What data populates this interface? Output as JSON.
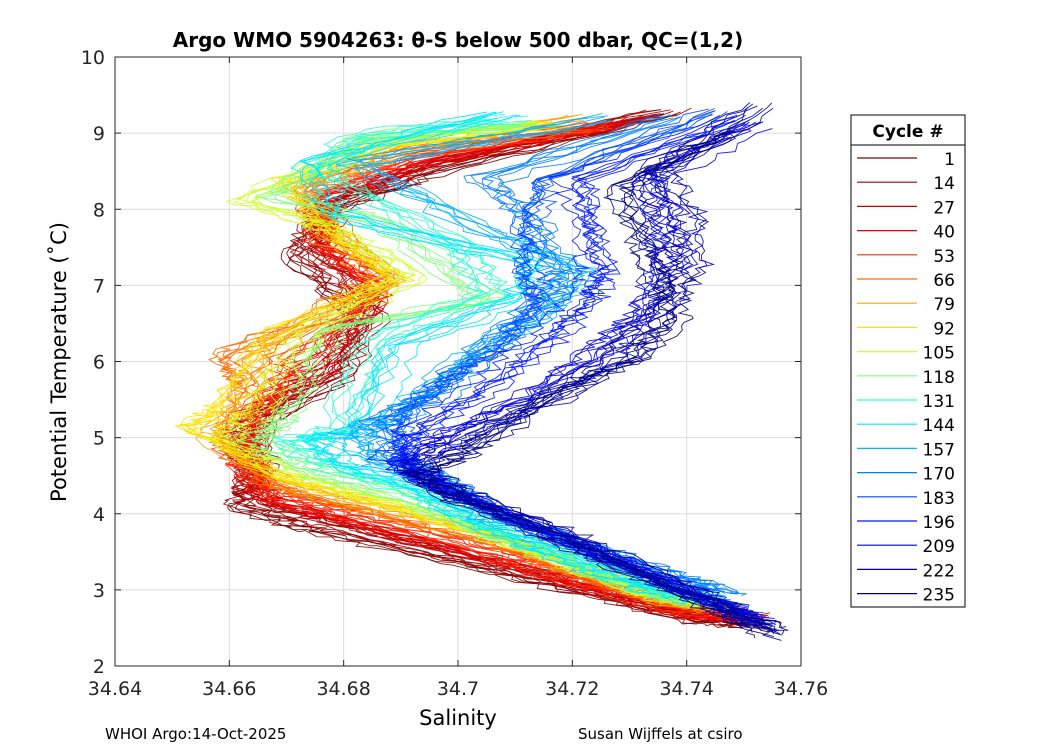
{
  "chart_data": {
    "type": "line",
    "title": "Argo WMO 5904263: θ-S below 500 dbar,  QC=(1,2)",
    "xlabel": "Salinity",
    "ylabel": "Potential Temperature (˚C)",
    "xlim": [
      34.64,
      34.76
    ],
    "ylim": [
      2,
      10
    ],
    "xticks": [
      34.64,
      34.66,
      34.68,
      34.7,
      34.72,
      34.74,
      34.76
    ],
    "xtick_labels": [
      "34.64",
      "34.66",
      "34.68",
      "34.7",
      "34.72",
      "34.74",
      "34.76"
    ],
    "yticks": [
      2,
      3,
      4,
      5,
      6,
      7,
      8,
      9,
      10
    ],
    "ytick_labels": [
      "2",
      "3",
      "4",
      "5",
      "6",
      "7",
      "8",
      "9",
      "10"
    ],
    "grid": true,
    "legend": {
      "title": "Cycle #",
      "location": "outside-right",
      "entries": [
        {
          "label": "1",
          "color": "#800000"
        },
        {
          "label": "14",
          "color": "#a50000"
        },
        {
          "label": "27",
          "color": "#c80000"
        },
        {
          "label": "40",
          "color": "#ed0000"
        },
        {
          "label": "53",
          "color": "#ff2e00"
        },
        {
          "label": "66",
          "color": "#ff6a00"
        },
        {
          "label": "79",
          "color": "#ffa400"
        },
        {
          "label": "92",
          "color": "#ffe000"
        },
        {
          "label": "105",
          "color": "#d0ff2e"
        },
        {
          "label": "118",
          "color": "#7eff80"
        },
        {
          "label": "131",
          "color": "#2effd0"
        },
        {
          "label": "144",
          "color": "#00e6ff"
        },
        {
          "label": "157",
          "color": "#00b2ff"
        },
        {
          "label": "170",
          "color": "#007eff"
        },
        {
          "label": "183",
          "color": "#004aff"
        },
        {
          "label": "196",
          "color": "#0016ff"
        },
        {
          "label": "209",
          "color": "#0000e2"
        },
        {
          "label": "222",
          "color": "#0000b0"
        },
        {
          "label": "235",
          "color": "#000080"
        }
      ]
    },
    "series": [
      {
        "name": "1",
        "color": "#800000",
        "s": [
          34.753,
          34.742,
          34.725,
          34.7,
          34.676,
          34.663,
          34.665,
          34.663,
          34.68,
          34.684,
          34.672,
          34.678,
          34.696,
          34.738
        ],
        "t": [
          2.55,
          2.62,
          2.95,
          3.4,
          3.8,
          4.1,
          4.55,
          5.1,
          5.8,
          6.6,
          7.4,
          8.0,
          8.5,
          9.3
        ]
      },
      {
        "name": "14",
        "color": "#a50000",
        "s": [
          34.752,
          34.741,
          34.724,
          34.701,
          34.678,
          34.664,
          34.664,
          34.662,
          34.678,
          34.684,
          34.674,
          34.677,
          34.695,
          34.735
        ],
        "t": [
          2.6,
          2.65,
          3.0,
          3.42,
          3.85,
          4.15,
          4.6,
          5.2,
          5.85,
          6.7,
          7.45,
          8.05,
          8.55,
          9.25
        ]
      },
      {
        "name": "27",
        "color": "#c80000",
        "s": [
          34.751,
          34.74,
          34.722,
          34.702,
          34.679,
          34.665,
          34.663,
          34.664,
          34.676,
          34.685,
          34.675,
          34.676,
          34.694,
          34.732
        ],
        "t": [
          2.65,
          2.7,
          3.05,
          3.45,
          3.9,
          4.2,
          4.65,
          5.3,
          5.9,
          6.8,
          7.5,
          8.1,
          8.6,
          9.2
        ]
      },
      {
        "name": "40",
        "color": "#ed0000",
        "s": [
          34.749,
          34.739,
          34.721,
          34.703,
          34.68,
          34.666,
          34.662,
          34.665,
          34.673,
          34.686,
          34.676,
          34.675,
          34.693,
          34.728
        ],
        "t": [
          2.62,
          2.72,
          3.1,
          3.5,
          3.95,
          4.25,
          4.7,
          5.4,
          6.0,
          6.9,
          7.55,
          8.15,
          8.65,
          9.15
        ]
      },
      {
        "name": "53",
        "color": "#ff2e00",
        "s": [
          34.748,
          34.738,
          34.72,
          34.704,
          34.681,
          34.667,
          34.661,
          34.666,
          34.67,
          34.687,
          34.677,
          34.674,
          34.692,
          34.725
        ],
        "t": [
          2.7,
          2.75,
          3.15,
          3.55,
          4.0,
          4.3,
          4.8,
          5.5,
          6.1,
          7.0,
          7.6,
          8.2,
          8.7,
          9.1
        ]
      },
      {
        "name": "66",
        "color": "#ff6a00",
        "s": [
          34.747,
          34.737,
          34.721,
          34.706,
          34.683,
          34.668,
          34.66,
          34.664,
          34.66,
          34.674,
          34.688,
          34.673,
          34.691,
          34.722
        ],
        "t": [
          2.72,
          2.8,
          3.2,
          3.6,
          4.05,
          4.35,
          4.9,
          5.6,
          6.05,
          6.5,
          7.1,
          8.25,
          8.75,
          9.05
        ]
      },
      {
        "name": "79",
        "color": "#ffa400",
        "s": [
          34.746,
          34.736,
          34.722,
          34.708,
          34.684,
          34.669,
          34.656,
          34.663,
          34.665,
          34.688,
          34.677,
          34.672,
          34.69,
          34.72
        ],
        "t": [
          2.75,
          2.85,
          3.25,
          3.65,
          4.1,
          4.4,
          5.05,
          5.5,
          6.2,
          7.05,
          7.65,
          8.3,
          8.8,
          9.2
        ]
      },
      {
        "name": "92",
        "color": "#ffe000",
        "s": [
          34.745,
          34.735,
          34.721,
          34.707,
          34.686,
          34.67,
          34.655,
          34.66,
          34.668,
          34.69,
          34.678,
          34.671,
          34.689,
          34.718
        ],
        "t": [
          2.78,
          2.9,
          3.3,
          3.7,
          4.15,
          4.45,
          5.1,
          5.4,
          6.3,
          7.1,
          7.7,
          8.35,
          8.85,
          9.1
        ]
      },
      {
        "name": "105",
        "color": "#d0ff2e",
        "s": [
          34.744,
          34.734,
          34.72,
          34.706,
          34.688,
          34.672,
          34.659,
          34.665,
          34.673,
          34.692,
          34.679,
          34.662,
          34.686,
          34.715
        ],
        "t": [
          2.8,
          2.95,
          3.35,
          3.75,
          4.2,
          4.5,
          5.0,
          5.35,
          6.4,
          7.15,
          7.75,
          8.15,
          8.9,
          9.15
        ]
      },
      {
        "name": "118",
        "color": "#7eff80",
        "s": [
          34.743,
          34.733,
          34.719,
          34.705,
          34.69,
          34.675,
          34.665,
          34.67,
          34.678,
          34.706,
          34.688,
          34.668,
          34.684,
          34.712
        ],
        "t": [
          2.82,
          3.0,
          3.4,
          3.8,
          4.25,
          4.55,
          4.95,
          5.25,
          6.45,
          6.8,
          7.8,
          8.2,
          8.95,
          9.1
        ]
      },
      {
        "name": "131",
        "color": "#2effd0",
        "s": [
          34.742,
          34.732,
          34.718,
          34.704,
          34.692,
          34.678,
          34.67,
          34.679,
          34.684,
          34.706,
          34.7,
          34.676,
          34.682,
          34.71
        ],
        "t": [
          2.85,
          3.05,
          3.45,
          3.85,
          4.3,
          4.6,
          4.95,
          5.1,
          6.3,
          6.9,
          7.5,
          8.5,
          8.95,
          9.2
        ]
      },
      {
        "name": "144",
        "color": "#00e6ff",
        "s": [
          34.741,
          34.731,
          34.717,
          34.703,
          34.694,
          34.681,
          34.676,
          34.683,
          34.69,
          34.712,
          34.715,
          34.68,
          34.675,
          34.708
        ],
        "t": [
          2.88,
          3.1,
          3.5,
          3.9,
          4.35,
          4.65,
          5.0,
          5.05,
          6.2,
          6.85,
          7.3,
          7.9,
          8.6,
          9.25
        ]
      },
      {
        "name": "157",
        "color": "#00b2ff",
        "s": [
          34.745,
          34.735,
          34.72,
          34.705,
          34.696,
          34.685,
          34.681,
          34.69,
          34.7,
          34.716,
          34.722,
          34.705,
          34.682,
          34.725
        ],
        "t": [
          2.9,
          3.15,
          3.55,
          3.95,
          4.4,
          4.7,
          5.1,
          5.3,
          6.0,
          6.7,
          7.2,
          7.7,
          8.6,
          9.2
        ]
      },
      {
        "name": "170",
        "color": "#007eff",
        "s": [
          34.748,
          34.738,
          34.722,
          34.707,
          34.698,
          34.689,
          34.686,
          34.697,
          34.705,
          34.716,
          34.718,
          34.712,
          34.705,
          34.738
        ],
        "t": [
          2.95,
          3.2,
          3.6,
          4.0,
          4.45,
          4.75,
          5.2,
          5.6,
          6.2,
          6.8,
          7.2,
          7.9,
          8.4,
          9.2
        ]
      },
      {
        "name": "183",
        "color": "#004aff",
        "s": [
          34.75,
          34.74,
          34.724,
          34.709,
          34.698,
          34.69,
          34.69,
          34.699,
          34.708,
          34.714,
          34.712,
          34.712,
          34.715,
          34.745
        ],
        "t": [
          2.7,
          3.0,
          3.5,
          3.95,
          4.4,
          4.8,
          5.3,
          5.8,
          6.2,
          6.8,
          7.2,
          7.8,
          8.4,
          9.3
        ]
      },
      {
        "name": "196",
        "color": "#0016ff",
        "s": [
          34.752,
          34.742,
          34.726,
          34.711,
          34.696,
          34.688,
          34.692,
          34.705,
          34.715,
          34.722,
          34.724,
          34.722,
          34.72,
          34.748
        ],
        "t": [
          2.6,
          2.9,
          3.4,
          3.9,
          4.35,
          4.7,
          5.1,
          5.7,
          6.3,
          6.8,
          7.2,
          7.8,
          8.4,
          9.2
        ]
      },
      {
        "name": "209",
        "color": "#0000e2",
        "s": [
          34.754,
          34.744,
          34.728,
          34.713,
          34.697,
          34.69,
          34.698,
          34.712,
          34.724,
          34.732,
          34.736,
          34.735,
          34.733,
          34.752
        ],
        "t": [
          2.5,
          2.85,
          3.35,
          3.85,
          4.3,
          4.6,
          5.0,
          5.5,
          6.1,
          6.6,
          7.3,
          7.9,
          8.4,
          9.1
        ]
      },
      {
        "name": "222",
        "color": "#0000b0",
        "s": [
          34.755,
          34.745,
          34.73,
          34.715,
          34.699,
          34.692,
          34.7,
          34.716,
          34.728,
          34.737,
          34.741,
          34.74,
          34.735,
          34.753
        ],
        "t": [
          2.45,
          2.8,
          3.3,
          3.8,
          4.25,
          4.55,
          4.95,
          5.5,
          6.1,
          6.8,
          7.3,
          7.9,
          8.5,
          9.35
        ]
      },
      {
        "name": "235",
        "color": "#000080",
        "s": [
          34.756,
          34.746,
          34.731,
          34.716,
          34.701,
          34.694,
          34.704,
          34.718,
          34.731,
          34.737,
          34.737,
          34.733,
          34.729,
          34.748
        ],
        "t": [
          2.4,
          2.75,
          3.25,
          3.75,
          4.2,
          4.5,
          4.9,
          5.6,
          6.0,
          6.5,
          7.0,
          7.6,
          8.3,
          9.0
        ]
      }
    ]
  },
  "footer": {
    "left": "WHOI Argo:14-Oct-2025",
    "right": "Susan Wijffels at csiro"
  }
}
